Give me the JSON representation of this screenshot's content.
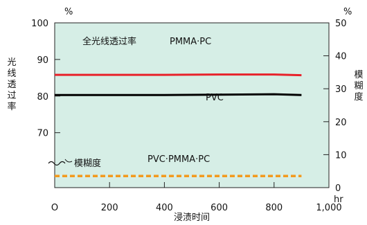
{
  "chart_data": {
    "type": "line",
    "x_range": [
      0,
      1000
    ],
    "x_ticks": [
      "O",
      "200",
      "400",
      "600",
      "800",
      "1,000"
    ],
    "x_tick_values": [
      0,
      200,
      400,
      600,
      800,
      1000
    ],
    "xlabel": "浸渍时间",
    "x_unit": "hr",
    "left_axis": {
      "label": "光线透过率",
      "unit": "%",
      "range": [
        55,
        100
      ],
      "ticks": [
        70,
        80,
        90,
        100
      ],
      "break_marker": true
    },
    "right_axis": {
      "label": "模糊度",
      "unit": "%",
      "range": [
        0,
        50
      ],
      "ticks": [
        0,
        10,
        20,
        30,
        40,
        50
      ]
    },
    "series": [
      {
        "name": "PMMA·PC",
        "axis": "left",
        "color": "#e8212a",
        "style": "solid",
        "x": [
          0,
          200,
          400,
          600,
          800,
          900
        ],
        "y": [
          85.8,
          85.8,
          85.8,
          85.9,
          85.9,
          85.7
        ]
      },
      {
        "name": "PVC",
        "axis": "left",
        "color": "#000000",
        "style": "solid",
        "x": [
          0,
          200,
          400,
          600,
          800,
          900
        ],
        "y": [
          80.3,
          80.3,
          80.3,
          80.4,
          80.5,
          80.3
        ]
      },
      {
        "name": "PVC·PMMA·PC",
        "axis": "right",
        "color": "#f39a1e",
        "style": "dashed",
        "x": [
          0,
          900
        ],
        "y": [
          3.5,
          3.5
        ]
      }
    ],
    "annotations": {
      "transmittance": "全光线透过率",
      "haze": "模糊度"
    },
    "background": "#d6eee6"
  }
}
